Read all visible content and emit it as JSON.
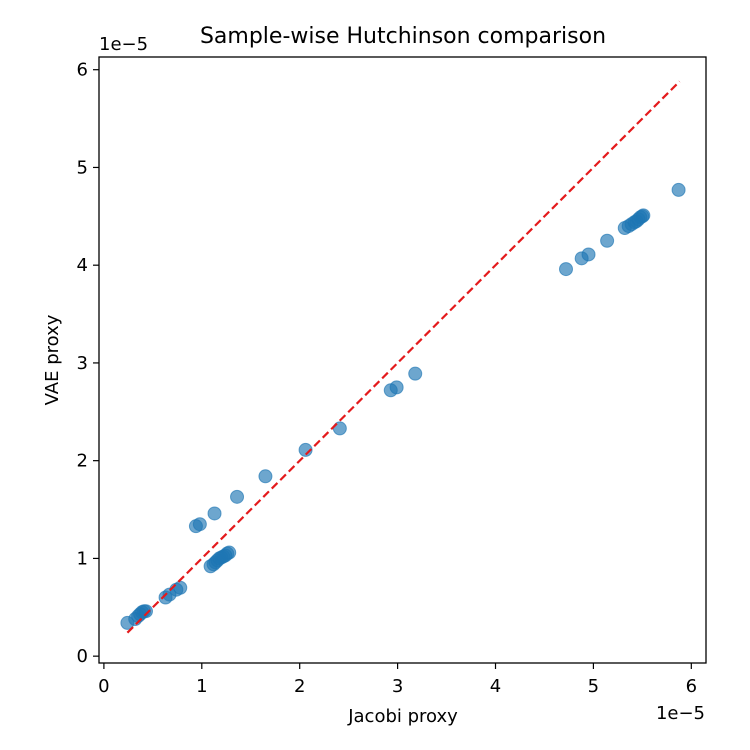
{
  "chart_data": {
    "type": "scatter",
    "title": "Sample-wise Hutchinson comparison",
    "xlabel": "Jacobi proxy",
    "ylabel": "VAE proxy",
    "x_offset_text": "1e−5",
    "y_offset_text": "1e−5",
    "scale": 1e-05,
    "xlim": [
      -0.05,
      6.15
    ],
    "ylim": [
      -0.07,
      6.13
    ],
    "xticks": [
      0,
      1,
      2,
      3,
      4,
      5,
      6
    ],
    "yticks": [
      0,
      1,
      2,
      3,
      4,
      5,
      6
    ],
    "xtick_labels": [
      "0",
      "1",
      "2",
      "3",
      "4",
      "5",
      "6"
    ],
    "ytick_labels": [
      "0",
      "1",
      "2",
      "3",
      "4",
      "5",
      "6"
    ],
    "grid": false,
    "legend": false,
    "colors": {
      "points": "#1f77b4",
      "reference_line": "#e41a1c"
    },
    "series": [
      {
        "marker": "circle",
        "alpha": 0.65,
        "points": [
          [
            0.24,
            0.34
          ],
          [
            0.32,
            0.38
          ],
          [
            0.35,
            0.41
          ],
          [
            0.37,
            0.43
          ],
          [
            0.39,
            0.45
          ],
          [
            0.41,
            0.46
          ],
          [
            0.43,
            0.46
          ],
          [
            0.63,
            0.6
          ],
          [
            0.67,
            0.63
          ],
          [
            0.74,
            0.68
          ],
          [
            0.78,
            0.7
          ],
          [
            0.94,
            1.33
          ],
          [
            0.98,
            1.35
          ],
          [
            1.09,
            0.92
          ],
          [
            1.12,
            0.94
          ],
          [
            1.14,
            0.96
          ],
          [
            1.16,
            0.98
          ],
          [
            1.18,
            1.0
          ],
          [
            1.2,
            1.01
          ],
          [
            1.22,
            1.02
          ],
          [
            1.24,
            1.03
          ],
          [
            1.26,
            1.05
          ],
          [
            1.28,
            1.06
          ],
          [
            1.13,
            1.46
          ],
          [
            1.36,
            1.63
          ],
          [
            1.65,
            1.84
          ],
          [
            2.06,
            2.11
          ],
          [
            2.41,
            2.33
          ],
          [
            2.93,
            2.72
          ],
          [
            2.99,
            2.75
          ],
          [
            3.18,
            2.89
          ],
          [
            4.72,
            3.96
          ],
          [
            4.88,
            4.07
          ],
          [
            4.95,
            4.11
          ],
          [
            5.14,
            4.25
          ],
          [
            5.32,
            4.38
          ],
          [
            5.36,
            4.4
          ],
          [
            5.39,
            4.42
          ],
          [
            5.42,
            4.44
          ],
          [
            5.44,
            4.45
          ],
          [
            5.46,
            4.47
          ],
          [
            5.48,
            4.49
          ],
          [
            5.5,
            4.5
          ],
          [
            5.51,
            4.51
          ],
          [
            5.87,
            4.77
          ]
        ]
      }
    ],
    "reference_line": {
      "style": "dashed",
      "x": [
        0.24,
        5.88
      ],
      "y": [
        0.24,
        5.88
      ]
    }
  }
}
